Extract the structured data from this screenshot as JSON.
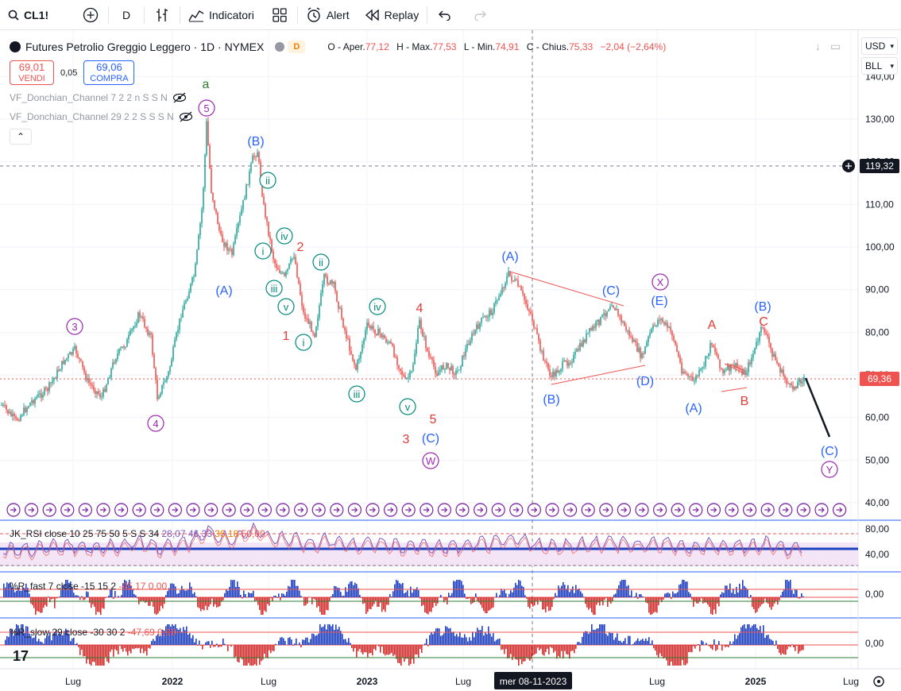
{
  "toolbar": {
    "symbol": "CL1!",
    "interval": "D",
    "indicators_label": "Indicatori",
    "alert_label": "Alert",
    "replay_label": "Replay"
  },
  "legend": {
    "title": "Futures Petrolio Greggio Leggero · 1D · NYMEX",
    "delay_badge": "D",
    "open_label": "O - Aper.",
    "open": "77,12",
    "high_label": "H - Max.",
    "high": "77,53",
    "low_label": "L - Min.",
    "low": "74,91",
    "close_label": "C - Chius.",
    "close": "75,33",
    "change": "−2,04 (−2,64%)"
  },
  "trade": {
    "sell_price": "69,01",
    "sell_label": "VENDI",
    "spread": "0,05",
    "buy_price": "69,06",
    "buy_label": "COMPRA"
  },
  "indicators": {
    "donchian_1": "VF_Donchian_Channel 7 2 2 n S S N",
    "donchian_2": "VF_Donchian_Channel 29 2 2 S S S N"
  },
  "right_panel": {
    "currency": "USD",
    "unit": "BLL"
  },
  "price_axis": {
    "ticks": [
      "140,00",
      "130,00",
      "120,00",
      "110,00",
      "100,00",
      "90,00",
      "80,00",
      "70,00",
      "60,00",
      "50,00",
      "40,00"
    ],
    "crosshair_price": "119,32",
    "last_price": "69,36",
    "last_price_overlay": "69,36"
  },
  "time_axis": {
    "labels": [
      "Lug",
      "2022",
      "Lug",
      "2023",
      "Lug",
      "mer 08-11-2023",
      "Lug",
      "2025",
      "Lug"
    ]
  },
  "rsi_pane": {
    "label": "JK_RSI close 10 25 75 50 5 S S 34",
    "v1": "28,07",
    "v2": "46,33",
    "v3": "36,18",
    "v4": "50,00",
    "ticks": [
      "80,00",
      "40,00"
    ]
  },
  "wr_fast_pane": {
    "label": "%R_fast 7 close -15 15 2",
    "v1": "-45,17",
    "v2": "0,00",
    "tick": "0,00"
  },
  "wr_slow_pane": {
    "label": "%R_slow 29 close -30 30 2",
    "v1": "-47,69",
    "v2": "0,00",
    "tick": "0,00"
  },
  "wave_labels": [
    {
      "text": "a",
      "color": "#2e7d32"
    },
    {
      "text": "5",
      "color": "#9c27b0"
    },
    {
      "text": "(B)",
      "color": "#2962ff"
    },
    {
      "text": "ii",
      "color": "#00897b"
    },
    {
      "text": "iv",
      "color": "#00897b"
    },
    {
      "text": "i",
      "color": "#00897b"
    },
    {
      "text": "2",
      "color": "#e53935"
    },
    {
      "text": "ii",
      "color": "#00897b"
    },
    {
      "text": "(A)",
      "color": "#2962ff"
    },
    {
      "text": "iii",
      "color": "#00897b"
    },
    {
      "text": "v",
      "color": "#00897b"
    },
    {
      "text": "3",
      "color": "#9c27b0"
    },
    {
      "text": "1",
      "color": "#e53935"
    },
    {
      "text": "i",
      "color": "#00897b"
    },
    {
      "text": "iv",
      "color": "#00897b"
    },
    {
      "text": "4",
      "color": "#e53935"
    },
    {
      "text": "iii",
      "color": "#00897b"
    },
    {
      "text": "v",
      "color": "#00897b"
    },
    {
      "text": "4",
      "color": "#9c27b0"
    },
    {
      "text": "5",
      "color": "#e53935"
    },
    {
      "text": "3",
      "color": "#e53935"
    },
    {
      "text": "(C)",
      "color": "#2962ff"
    },
    {
      "text": "W",
      "color": "#9c27b0"
    },
    {
      "text": "(A)",
      "color": "#2962ff"
    },
    {
      "text": "(B)",
      "color": "#2962ff"
    },
    {
      "text": "(C)",
      "color": "#2962ff"
    },
    {
      "text": "X",
      "color": "#9c27b0"
    },
    {
      "text": "(E)",
      "color": "#2962ff"
    },
    {
      "text": "(D)",
      "color": "#2962ff"
    },
    {
      "text": "A",
      "color": "#e53935"
    },
    {
      "text": "(A)",
      "color": "#2962ff"
    },
    {
      "text": "B",
      "color": "#e53935"
    },
    {
      "text": "(B)",
      "color": "#2962ff"
    },
    {
      "text": "C",
      "color": "#e53935"
    },
    {
      "text": "(C)",
      "color": "#2962ff"
    },
    {
      "text": "Y",
      "color": "#9c27b0"
    }
  ],
  "colors": {
    "up": "#26a69a",
    "down": "#ef5350",
    "wave_line": "#ef5350",
    "projection": "#131722"
  }
}
